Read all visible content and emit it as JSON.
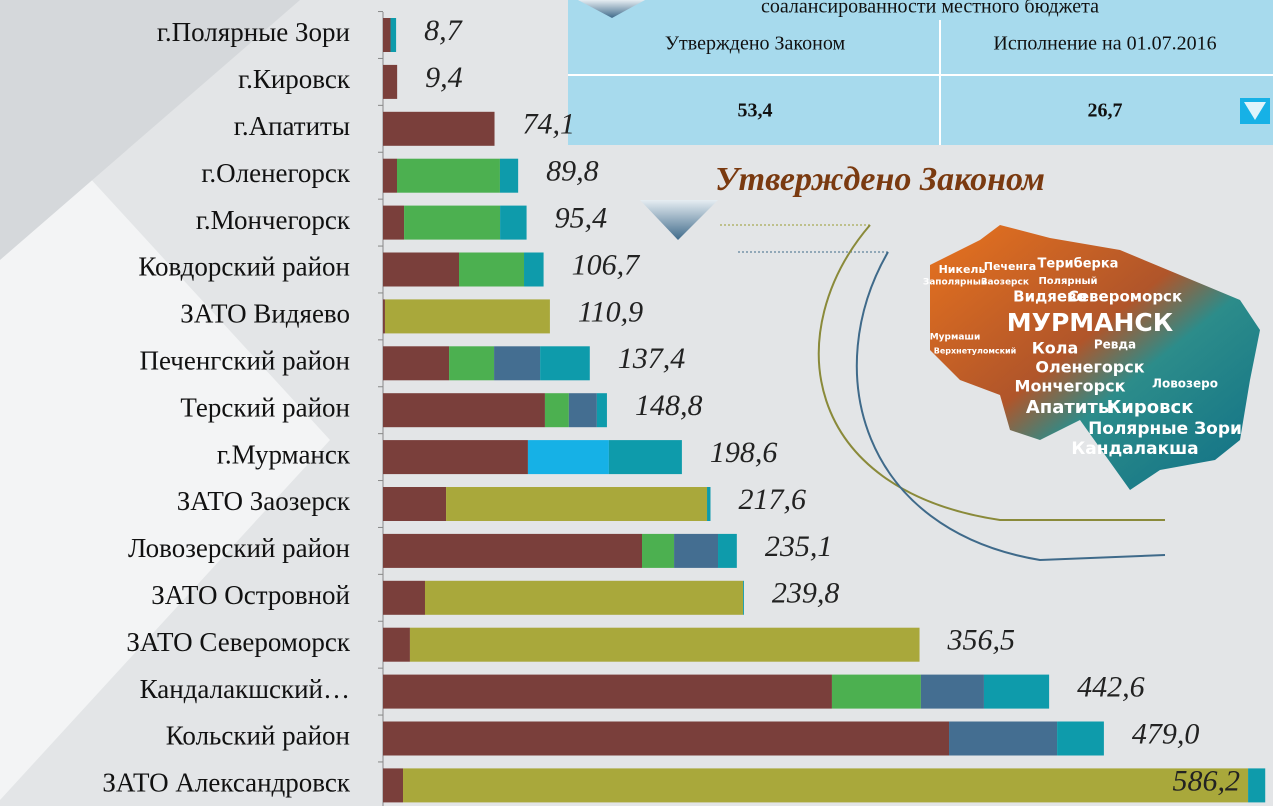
{
  "chart_data": {
    "type": "stacked-bar-horizontal",
    "categories": [
      "г.Полярные Зори",
      "г.Кировск",
      "г.Апатиты",
      "г.Оленегорск",
      "г.Мончегорск",
      "Ковдорский район",
      "ЗАТО Видяево",
      "Печенгский район",
      "Терский район",
      "г.Мурманск",
      "ЗАТО Заозерск",
      "Ловозерский район",
      "ЗАТО Островной",
      "ЗАТО Североморск",
      "Кандалакшский…",
      "Кольский район",
      "ЗАТО Александровск"
    ],
    "series": [
      {
        "color": "#7a3f3b",
        "values": [
          5.0,
          9.4,
          74.1,
          9.3,
          14.0,
          50.5,
          1.3,
          43.9,
          107.6,
          96.3,
          41.9,
          172.1,
          27.9,
          17.9,
          298.3,
          376.1,
          13.3
        ]
      },
      {
        "color": "#4cb050",
        "values": [
          null,
          null,
          null,
          68.4,
          63.8,
          43.2,
          null,
          29.9,
          15.9,
          null,
          null,
          21.3,
          null,
          null,
          59.1,
          null,
          null
        ]
      },
      {
        "color": "#446e91",
        "values": [
          null,
          null,
          null,
          null,
          null,
          null,
          null,
          30.6,
          18.6,
          null,
          null,
          29.2,
          null,
          null,
          41.9,
          71.8,
          null
        ]
      },
      {
        "color": "#16b1e6",
        "values": [
          null,
          null,
          null,
          null,
          null,
          null,
          null,
          null,
          null,
          53.8,
          null,
          null,
          null,
          null,
          null,
          null,
          null
        ]
      },
      {
        "color": "#a9a83b",
        "values": [
          null,
          null,
          null,
          null,
          null,
          null,
          109.6,
          null,
          null,
          null,
          173.4,
          null,
          211.3,
          338.6,
          null,
          null,
          561.5
        ]
      },
      {
        "color": "#0e9bab",
        "values": [
          3.7,
          null,
          null,
          12.1,
          17.6,
          13.0,
          null,
          33.0,
          6.7,
          48.5,
          2.3,
          12.5,
          0.6,
          null,
          43.3,
          31.1,
          11.4
        ]
      }
    ],
    "totals": {
      "values": [
        8.7,
        9.4,
        74.1,
        89.8,
        95.4,
        106.7,
        110.9,
        137.4,
        148.8,
        198.6,
        217.6,
        235.1,
        239.8,
        356.5,
        442.6,
        479.0,
        586.2
      ],
      "value_labels": [
        "8,7",
        "9,4",
        "74,1",
        "89,8",
        "95,4",
        "106,7",
        "110,9",
        "137,4",
        "148,8",
        "198,6",
        "217,6",
        "235,1",
        "239,8",
        "356,5",
        "442,6",
        "479,0",
        "586,2"
      ]
    }
  },
  "table": {
    "caption": "соалансированности местного бюджета",
    "headers": [
      "Утверждено Законом",
      "Исполнение на 01.07.2016"
    ],
    "values": [
      "53,4",
      "26,7"
    ]
  },
  "heading": "Утверждено Законом",
  "map": {
    "words": [
      "Никель",
      "Печенга",
      "Териберка",
      "Заполярный",
      "Заозерск",
      "Полярный",
      "Видяево",
      "Североморск",
      "МУРМАНСК",
      "Мурмаши",
      "Верхнетуломский",
      "Кола",
      "Ревда",
      "Оленегорск",
      "Ловозеро",
      "Мончегорск",
      "Апатиты",
      "Кировск",
      "Полярные Зори",
      "Кандалакша"
    ]
  }
}
